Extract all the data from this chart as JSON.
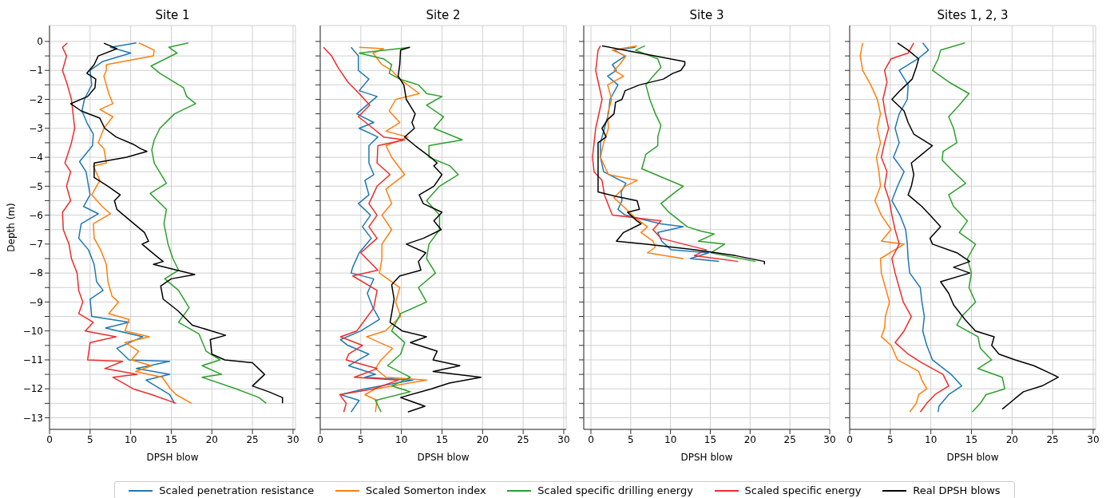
{
  "chart_data": [
    {
      "type": "line",
      "title": "Site 1",
      "xlabel": "DPSH blow",
      "ylabel": "Depth (m)",
      "xlim": [
        0,
        30.3
      ],
      "xticks": [
        0,
        5,
        10,
        15,
        20,
        25,
        30
      ],
      "ylim": [
        -13.4,
        0.55
      ],
      "yticks": [
        0,
        -1,
        -2,
        -3,
        -4,
        -5,
        -6,
        -7,
        -8,
        -9,
        -10,
        -11,
        -12,
        -13,
        {
          "value": -0.5,
          "label": null
        },
        {
          "value": -1.5,
          "label": null
        },
        {
          "value": -2.5,
          "label": null
        },
        {
          "value": -3.5,
          "label": null
        },
        {
          "value": -4.5,
          "label": null
        },
        {
          "value": -5.5,
          "label": null
        },
        {
          "value": -6.5,
          "label": null
        },
        {
          "value": -7.5,
          "label": null
        },
        {
          "value": -8.5,
          "label": null
        },
        {
          "value": -9.5,
          "label": null
        },
        {
          "value": -10.5,
          "label": null
        },
        {
          "value": -11.5,
          "label": null
        },
        {
          "value": -12.5,
          "label": null
        }
      ],
      "grid": true,
      "legend": "bottom",
      "marker": "none",
      "line_style": "solid",
      "series": [
        {
          "name": "Scaled penetration resistance",
          "color": "#1f77b4",
          "x": [
            10.7,
            7.5,
            10.0,
            6.5,
            5.0,
            5.2,
            4.3,
            4.0,
            4.6,
            5.4,
            5.3,
            3.7,
            4.5,
            5.0,
            4.2,
            6.0,
            3.9,
            3.6,
            4.8,
            5.5,
            5.8,
            6.6,
            5.0,
            5.2,
            9.8,
            6.9,
            11.5,
            8.3,
            9.8,
            14.8,
            10.7,
            14.8,
            11.9,
            14.8,
            15.4
          ],
          "values": [
            -0.05,
            -0.2,
            -0.4,
            -0.7,
            -1.0,
            -1.5,
            -2.0,
            -2.4,
            -2.8,
            -3.2,
            -3.6,
            -4.15,
            -4.5,
            -5.3,
            -5.7,
            -5.95,
            -6.3,
            -6.8,
            -7.2,
            -7.7,
            -8.3,
            -8.6,
            -8.9,
            -9.5,
            -9.7,
            -9.9,
            -10.2,
            -10.6,
            -11.0,
            -11.05,
            -11.3,
            -11.5,
            -11.7,
            -12.2,
            -12.5
          ]
        },
        {
          "name": "Scaled Somerton index",
          "color": "#ff7f0e",
          "x": [
            11.0,
            12.9,
            12.8,
            7.0,
            7.0,
            6.7,
            7.3,
            7.8,
            6.2,
            7.8,
            6.7,
            6.0,
            6.7,
            7.0,
            5.4,
            6.2,
            5.2,
            6.5,
            7.5,
            5.4,
            5.5,
            6.3,
            7.0,
            7.2,
            7.7,
            8.5,
            7.3,
            9.8,
            9.3,
            12.3,
            9.3,
            11.0,
            10.1,
            12.6,
            10.6,
            13.9,
            14.9,
            15.6,
            17.5
          ],
          "values": [
            -0.05,
            -0.3,
            -0.5,
            -0.8,
            -1.0,
            -1.2,
            -1.8,
            -2.15,
            -2.35,
            -2.6,
            -3.0,
            -3.5,
            -3.7,
            -4.2,
            -4.3,
            -4.8,
            -5.3,
            -5.7,
            -5.95,
            -6.3,
            -6.8,
            -7.2,
            -7.7,
            -8.3,
            -8.8,
            -9.0,
            -9.4,
            -9.6,
            -10.0,
            -10.2,
            -10.4,
            -10.7,
            -11.0,
            -11.2,
            -11.4,
            -11.6,
            -12.0,
            -12.2,
            -12.5
          ]
        },
        {
          "name": "Scaled specific drilling energy",
          "color": "#2ca02c",
          "x": [
            17.1,
            14.7,
            15.7,
            12.5,
            13.6,
            16.5,
            16.9,
            18.0,
            15.4,
            13.6,
            12.9,
            12.6,
            12.9,
            14.4,
            12.4,
            14.4,
            14.1,
            14.6,
            15.2,
            15.9,
            14.2,
            15.9,
            17.2,
            15.9,
            18.4,
            19.3,
            21.0,
            18.8,
            21.2,
            18.8,
            23.0,
            25.8,
            26.7
          ],
          "values": [
            -0.05,
            -0.2,
            -0.4,
            -0.85,
            -1.1,
            -1.6,
            -1.9,
            -2.15,
            -2.5,
            -3.0,
            -3.4,
            -3.75,
            -4.2,
            -4.9,
            -5.25,
            -5.8,
            -6.3,
            -7.0,
            -7.5,
            -7.9,
            -8.2,
            -8.6,
            -9.2,
            -9.7,
            -10.1,
            -10.7,
            -11.0,
            -11.2,
            -11.5,
            -11.6,
            -12.0,
            -12.3,
            -12.5
          ]
        },
        {
          "name": "Scaled specific energy",
          "color": "#ee2c2c",
          "x": [
            2.2,
            1.6,
            2.1,
            1.6,
            2.2,
            2.7,
            2.9,
            3.1,
            2.7,
            1.9,
            2.6,
            2.1,
            2.6,
            1.6,
            1.7,
            2.4,
            2.7,
            3.4,
            3.6,
            4.1,
            3.6,
            5.4,
            4.4,
            8.2,
            5.0,
            4.7,
            9.0,
            6.8,
            10.8,
            7.8,
            10.3,
            12.6,
            15.6
          ],
          "values": [
            -0.05,
            -0.2,
            -0.5,
            -1.0,
            -1.5,
            -2.0,
            -2.5,
            -3.0,
            -3.5,
            -4.2,
            -4.5,
            -5.0,
            -5.5,
            -5.9,
            -6.5,
            -7.0,
            -7.5,
            -8.0,
            -8.6,
            -9.0,
            -9.4,
            -9.7,
            -10.0,
            -10.2,
            -10.4,
            -11.0,
            -11.05,
            -11.3,
            -11.5,
            -11.6,
            -12.0,
            -12.2,
            -12.5
          ]
        },
        {
          "name": "Real DPSH blows",
          "color": "#000000",
          "x": [
            6.7,
            8.3,
            6.0,
            5.5,
            4.6,
            5.7,
            5.6,
            4.7,
            2.6,
            3.9,
            6.2,
            6.8,
            8.2,
            10.3,
            11.2,
            12.0,
            9.5,
            5.5,
            5.5,
            7.2,
            8.7,
            8.0,
            8.3,
            10.0,
            11.7,
            12.2,
            11.4,
            13.1,
            14.0,
            12.8,
            17.9,
            15.0,
            13.7,
            14.0,
            15.8,
            17.6,
            21.7,
            19.8,
            20.0,
            21.6,
            25.0,
            26.5,
            25.0,
            27.0,
            28.7,
            28.7
          ],
          "values": [
            -0.06,
            -0.25,
            -0.5,
            -0.8,
            -1.1,
            -1.3,
            -1.6,
            -1.9,
            -2.15,
            -2.4,
            -2.65,
            -3.0,
            -3.3,
            -3.55,
            -3.7,
            -3.8,
            -4.0,
            -4.2,
            -4.7,
            -5.0,
            -5.3,
            -5.5,
            -5.8,
            -6.2,
            -6.6,
            -6.9,
            -7.0,
            -7.4,
            -7.6,
            -7.7,
            -8.05,
            -8.2,
            -8.45,
            -8.9,
            -9.3,
            -9.8,
            -10.15,
            -10.3,
            -10.8,
            -11.0,
            -11.1,
            -11.5,
            -11.9,
            -12.1,
            -12.3,
            -12.5
          ]
        }
      ]
    },
    {
      "type": "line",
      "title": "Site 2",
      "xlabel": "DPSH blow",
      "xlim": [
        0,
        30.3
      ],
      "xticks": [
        0,
        5,
        10,
        15,
        20,
        25,
        30
      ],
      "ylim": [
        -13.4,
        0.55
      ],
      "yticks": [
        0,
        -1,
        -2,
        -3,
        -4,
        -5,
        -6,
        -7,
        -8,
        -9,
        -10,
        -11,
        -12,
        -13,
        {
          "value": -0.5,
          "label": null
        },
        {
          "value": -1.5,
          "label": null
        },
        {
          "value": -2.5,
          "label": null
        },
        {
          "value": -3.5,
          "label": null
        },
        {
          "value": -4.5,
          "label": null
        },
        {
          "value": -5.5,
          "label": null
        },
        {
          "value": -6.5,
          "label": null
        },
        {
          "value": -7.5,
          "label": null
        },
        {
          "value": -8.5,
          "label": null
        },
        {
          "value": -9.5,
          "label": null
        },
        {
          "value": -10.5,
          "label": null
        },
        {
          "value": -11.5,
          "label": null
        },
        {
          "value": -12.5,
          "label": null
        }
      ],
      "tick_labels": "x",
      "grid": true,
      "marker": "none",
      "line_style": "solid",
      "series": [
        {
          "name": "Scaled penetration resistance",
          "color": "#1f77b4",
          "x": [
            3.8,
            4.7,
            4.7,
            6.0,
            4.8,
            7.0,
            4.5,
            6.6,
            4.8,
            7.1,
            6.0,
            6.0,
            6.6,
            5.5,
            6.0,
            4.7,
            6.2,
            5.2,
            6.3,
            4.8,
            4.0,
            3.8,
            6.6,
            5.8,
            6.5,
            7.3,
            5.0,
            2.5,
            3.4,
            6.0,
            3.5,
            6.8,
            5.5,
            11.4,
            5.5,
            2.5,
            4.8,
            3.8
          ],
          "values": [
            -0.2,
            -0.5,
            -1.0,
            -1.3,
            -1.7,
            -1.9,
            -2.5,
            -2.8,
            -3.0,
            -3.3,
            -3.6,
            -4.2,
            -4.6,
            -4.8,
            -5.3,
            -5.6,
            -6.0,
            -6.4,
            -6.8,
            -7.3,
            -7.8,
            -8.0,
            -8.2,
            -8.7,
            -9.2,
            -9.6,
            -10.0,
            -10.3,
            -10.5,
            -10.8,
            -11.2,
            -11.5,
            -11.6,
            -11.7,
            -12.0,
            -12.2,
            -12.4,
            -12.8
          ]
        },
        {
          "name": "Scaled Somerton index",
          "color": "#ff7f0e",
          "x": [
            4.8,
            7.8,
            6.5,
            7.6,
            8.8,
            9.8,
            12.2,
            9.3,
            8.5,
            9.8,
            8.1,
            10.8,
            8.1,
            8.8,
            10.4,
            8.1,
            8.8,
            7.6,
            8.8,
            7.6,
            7.6,
            7.3,
            9.8,
            9.3,
            9.9,
            8.0,
            5.7,
            8.9,
            7.5,
            6.8,
            8.1,
            13.1,
            6.8,
            5.5,
            7.0,
            6.8
          ],
          "values": [
            -0.2,
            -0.25,
            -0.4,
            -0.8,
            -1.0,
            -1.3,
            -1.8,
            -2.0,
            -2.4,
            -2.8,
            -3.1,
            -3.3,
            -3.6,
            -4.0,
            -4.6,
            -5.1,
            -5.6,
            -6.0,
            -6.5,
            -7.0,
            -7.5,
            -8.0,
            -8.5,
            -9.0,
            -9.5,
            -10.0,
            -10.2,
            -10.6,
            -11.0,
            -11.3,
            -11.6,
            -11.7,
            -12.0,
            -12.2,
            -12.4,
            -12.8
          ]
        },
        {
          "name": "Scaled specific drilling energy",
          "color": "#2ca02c",
          "x": [
            11.1,
            9.6,
            4.8,
            7.8,
            8.8,
            8.5,
            9.8,
            12.1,
            13.1,
            15.0,
            13.1,
            15.2,
            14.0,
            17.5,
            13.4,
            13.4,
            16.0,
            17.0,
            14.7,
            13.1,
            14.7,
            14.7,
            13.4,
            13.1,
            14.2,
            12.1,
            13.1,
            9.9,
            8.8,
            10.4,
            9.9,
            8.3,
            11.1,
            8.8,
            11.1,
            6.8,
            7.5
          ],
          "values": [
            -0.2,
            -0.25,
            -0.4,
            -0.6,
            -0.8,
            -1.1,
            -1.3,
            -1.5,
            -1.8,
            -1.9,
            -2.2,
            -2.6,
            -3.0,
            -3.4,
            -3.6,
            -4.0,
            -4.3,
            -4.6,
            -5.0,
            -5.5,
            -6.0,
            -6.5,
            -7.0,
            -7.5,
            -8.0,
            -8.5,
            -9.0,
            -9.4,
            -10.0,
            -10.4,
            -10.8,
            -11.2,
            -11.6,
            -11.9,
            -12.1,
            -12.4,
            -12.8
          ]
        },
        {
          "name": "Scaled specific energy",
          "color": "#ee2c2c",
          "x": [
            0.4,
            1.4,
            2.2,
            3.4,
            4.8,
            6.1,
            4.7,
            6.5,
            7.8,
            10.4,
            7.1,
            7.0,
            8.6,
            7.0,
            6.0,
            7.0,
            6.0,
            7.0,
            5.0,
            7.1,
            4.0,
            7.0,
            6.6,
            5.3,
            4.5,
            2.5,
            5.2,
            3.5,
            3.2,
            7.0,
            4.2,
            9.6,
            6.6,
            2.4,
            3.2,
            2.9
          ],
          "values": [
            -0.2,
            -0.5,
            -0.9,
            -1.4,
            -1.8,
            -2.2,
            -2.6,
            -3.0,
            -3.3,
            -3.4,
            -3.6,
            -4.2,
            -4.6,
            -5.0,
            -5.6,
            -6.0,
            -6.4,
            -6.8,
            -7.3,
            -7.9,
            -8.1,
            -8.6,
            -9.2,
            -9.7,
            -10.0,
            -10.2,
            -10.5,
            -10.8,
            -11.0,
            -11.3,
            -11.6,
            -11.7,
            -12.0,
            -12.2,
            -12.5,
            -12.8
          ]
        },
        {
          "name": "Real DPSH blows",
          "color": "#000000",
          "x": [
            11.0,
            9.9,
            9.8,
            9.6,
            10.3,
            10.6,
            11.7,
            11.3,
            11.6,
            10.4,
            11.7,
            13.6,
            14.4,
            14.0,
            15.0,
            14.0,
            12.2,
            12.7,
            15.0,
            14.0,
            14.9,
            12.7,
            10.6,
            13.0,
            12.1,
            12.4,
            9.8,
            8.8,
            9.1,
            8.8,
            8.6,
            10.1,
            13.1,
            11.1,
            14.4,
            13.9,
            17.2,
            13.9,
            19.8,
            15.9,
            13.7,
            9.9,
            12.9,
            10.8
          ],
          "values": [
            -0.2,
            -0.3,
            -0.8,
            -1.2,
            -1.5,
            -2.0,
            -2.5,
            -2.8,
            -3.0,
            -3.3,
            -3.6,
            -4.0,
            -4.2,
            -4.3,
            -4.6,
            -5.0,
            -5.3,
            -5.6,
            -5.9,
            -6.2,
            -6.5,
            -6.8,
            -7.0,
            -7.3,
            -7.6,
            -7.9,
            -8.1,
            -8.4,
            -8.9,
            -9.4,
            -9.7,
            -10.0,
            -10.2,
            -10.4,
            -10.7,
            -11.0,
            -11.2,
            -11.4,
            -11.6,
            -11.8,
            -12.0,
            -12.3,
            -12.6,
            -12.8
          ]
        }
      ]
    },
    {
      "type": "line",
      "title": "Site 3",
      "xlabel": "DPSH blow",
      "xlim": [
        -0.9,
        30.0
      ],
      "xticks": [
        0,
        5,
        10,
        15,
        20,
        25,
        30
      ],
      "ylim": [
        -13.4,
        0.55
      ],
      "yticks": [
        0,
        -1,
        -2,
        -3,
        -4,
        -5,
        -6,
        -7,
        -8,
        -9,
        -10,
        -11,
        -12,
        -13,
        {
          "value": -0.5,
          "label": null
        },
        {
          "value": -1.5,
          "label": null
        },
        {
          "value": -2.5,
          "label": null
        },
        {
          "value": -3.5,
          "label": null
        },
        {
          "value": -4.5,
          "label": null
        },
        {
          "value": -5.5,
          "label": null
        },
        {
          "value": -6.5,
          "label": null
        },
        {
          "value": -7.5,
          "label": null
        },
        {
          "value": -8.5,
          "label": null
        },
        {
          "value": -9.5,
          "label": null
        },
        {
          "value": -10.5,
          "label": null
        },
        {
          "value": -11.5,
          "label": null
        },
        {
          "value": -12.5,
          "label": null
        }
      ],
      "tick_labels": "x",
      "grid": true,
      "marker": "none",
      "line_style": "solid",
      "series": [
        {
          "name": "Scaled penetration resistance",
          "color": "#1f77b4",
          "x": [
            5.6,
            2.9,
            4.3,
            2.7,
            3.2,
            2.1,
            3.4,
            2.4,
            2.2,
            1.7,
            1.2,
            1.2,
            1.6,
            4.4,
            3.8,
            3.9,
            3.4,
            4.3,
            8.8,
            11.6,
            8.4,
            8.9,
            10.1,
            14.8,
            12.5,
            16.1
          ],
          "values": [
            -0.2,
            -0.3,
            -0.5,
            -0.8,
            -1.0,
            -1.2,
            -1.5,
            -2.0,
            -2.5,
            -3.0,
            -3.5,
            -4.0,
            -4.5,
            -4.9,
            -5.2,
            -5.5,
            -5.8,
            -6.0,
            -6.3,
            -6.4,
            -6.6,
            -6.9,
            -7.2,
            -7.3,
            -7.5,
            -7.6
          ]
        },
        {
          "name": "Scaled Somerton index",
          "color": "#ff7f0e",
          "x": [
            5.8,
            2.7,
            4.4,
            3.6,
            2.9,
            4.1,
            2.1,
            2.6,
            2.1,
            2.2,
            1.6,
            1.2,
            2.2,
            5.8,
            4.3,
            2.9,
            4.1,
            5.6,
            7.1,
            6.3,
            7.8,
            8.1,
            7.1,
            11.6
          ],
          "values": [
            -0.15,
            -0.3,
            -0.5,
            -0.8,
            -1.0,
            -1.2,
            -1.5,
            -2.0,
            -2.5,
            -3.0,
            -3.5,
            -4.0,
            -4.6,
            -4.8,
            -5.0,
            -5.4,
            -5.7,
            -6.1,
            -6.4,
            -6.6,
            -6.9,
            -7.1,
            -7.3,
            -7.5
          ]
        },
        {
          "name": "Scaled specific drilling energy",
          "color": "#2ca02c",
          "x": [
            6.8,
            5.6,
            8.4,
            8.8,
            7.8,
            6.9,
            7.4,
            8.1,
            8.8,
            8.4,
            8.4,
            6.9,
            6.4,
            11.6,
            10.6,
            8.8,
            9.8,
            12.1,
            13.8,
            15.5,
            13.5,
            16.8,
            15.1,
            20.7
          ],
          "values": [
            -0.15,
            -0.3,
            -0.6,
            -0.9,
            -1.2,
            -1.5,
            -2.0,
            -2.5,
            -2.9,
            -3.3,
            -3.6,
            -3.9,
            -4.4,
            -5.0,
            -5.2,
            -5.6,
            -5.9,
            -6.4,
            -6.55,
            -6.65,
            -6.9,
            -7.0,
            -7.3,
            -7.6
          ]
        },
        {
          "name": "Scaled specific energy",
          "color": "#ee2c2c",
          "x": [
            1.2,
            0.9,
            0.6,
            1.4,
            0.6,
            0.2,
            0.4,
            1.4,
            1.7,
            2.4,
            2.7,
            8.8,
            7.8,
            8.8,
            14.5,
            13.0,
            18.5
          ],
          "values": [
            -0.15,
            -0.3,
            -1.0,
            -2.0,
            -3.0,
            -4.0,
            -4.5,
            -4.8,
            -5.3,
            -5.8,
            -6.0,
            -6.2,
            -6.5,
            -6.8,
            -7.2,
            -7.4,
            -7.6
          ]
        },
        {
          "name": "Real DPSH blows",
          "color": "#000000",
          "x": [
            1.4,
            11.8,
            11.8,
            11.3,
            10.3,
            9.1,
            6.1,
            4.3,
            3.9,
            3.1,
            2.9,
            2.1,
            1.4,
            1.9,
            0.9,
            0.9,
            0.9,
            3.1,
            5.8,
            6.1,
            4.6,
            5.8,
            6.3,
            4.1,
            3.2,
            6.8,
            13.1,
            18.2,
            21.8,
            21.8
          ],
          "values": [
            -0.15,
            -0.7,
            -0.8,
            -1.0,
            -1.1,
            -1.3,
            -1.5,
            -1.7,
            -2.0,
            -2.1,
            -2.5,
            -2.7,
            -3.0,
            -3.3,
            -3.5,
            -4.5,
            -5.2,
            -5.35,
            -5.5,
            -5.8,
            -5.9,
            -6.2,
            -6.3,
            -6.6,
            -6.9,
            -7.0,
            -7.2,
            -7.4,
            -7.6,
            -7.7
          ]
        }
      ]
    },
    {
      "type": "line",
      "title": "Sites 1, 2, 3",
      "xlabel": "DPSH blow",
      "xlim": [
        0,
        30.3
      ],
      "xticks": [
        0,
        5,
        10,
        15,
        20,
        25,
        30
      ],
      "ylim": [
        -13.4,
        0.55
      ],
      "yticks": [
        0,
        -1,
        -2,
        -3,
        -4,
        -5,
        -6,
        -7,
        -8,
        -9,
        -10,
        -11,
        -12,
        -13,
        {
          "value": -0.5,
          "label": null
        },
        {
          "value": -1.5,
          "label": null
        },
        {
          "value": -2.5,
          "label": null
        },
        {
          "value": -3.5,
          "label": null
        },
        {
          "value": -4.5,
          "label": null
        },
        {
          "value": -5.5,
          "label": null
        },
        {
          "value": -6.5,
          "label": null
        },
        {
          "value": -7.5,
          "label": null
        },
        {
          "value": -8.5,
          "label": null
        },
        {
          "value": -9.5,
          "label": null
        },
        {
          "value": -10.5,
          "label": null
        },
        {
          "value": -11.5,
          "label": null
        },
        {
          "value": -12.5,
          "label": null
        }
      ],
      "tick_labels": "x",
      "grid": true,
      "marker": "none",
      "line_style": "solid",
      "series": [
        {
          "name": "Scaled penetration resistance",
          "color": "#1f77b4",
          "x": [
            9.0,
            9.7,
            8.4,
            6.1,
            7.2,
            7.1,
            6.1,
            5.6,
            6.1,
            5.4,
            6.7,
            5.9,
            5.2,
            6.2,
            6.9,
            7.1,
            7.2,
            7.4,
            8.7,
            8.9,
            9.2,
            9.0,
            9.5,
            10.2,
            12.5,
            13.8,
            12.2,
            11.0,
            10.9
          ],
          "values": [
            -0.05,
            -0.3,
            -0.6,
            -1.0,
            -1.5,
            -2.0,
            -2.5,
            -3.0,
            -3.5,
            -4.0,
            -4.5,
            -5.0,
            -5.5,
            -6.0,
            -6.5,
            -7.0,
            -7.5,
            -8.0,
            -8.5,
            -9.0,
            -9.5,
            -10.0,
            -10.5,
            -11.0,
            -11.5,
            -11.9,
            -12.2,
            -12.6,
            -12.8
          ]
        },
        {
          "name": "Scaled Somerton index",
          "color": "#ff7f0e",
          "x": [
            1.6,
            1.3,
            1.6,
            2.6,
            3.4,
            3.8,
            3.4,
            3.8,
            3.3,
            3.6,
            3.8,
            3.1,
            3.9,
            5.1,
            3.9,
            6.7,
            3.8,
            3.9,
            4.4,
            4.9,
            4.4,
            4.3,
            3.9,
            5.1,
            5.9,
            8.5,
            8.9,
            9.5,
            8.5,
            8.2,
            7.4
          ],
          "values": [
            -0.05,
            -0.5,
            -1.0,
            -1.5,
            -2.0,
            -2.5,
            -3.0,
            -3.5,
            -4.0,
            -4.5,
            -5.0,
            -5.5,
            -6.0,
            -6.5,
            -6.9,
            -7.0,
            -7.5,
            -8.0,
            -8.5,
            -9.0,
            -9.5,
            -9.9,
            -10.2,
            -10.5,
            -11.0,
            -11.4,
            -11.7,
            -12.0,
            -12.2,
            -12.5,
            -12.8
          ]
        },
        {
          "name": "Scaled specific drilling energy",
          "color": "#2ca02c",
          "x": [
            14.2,
            11.2,
            10.9,
            10.2,
            12.2,
            14.7,
            13.5,
            12.2,
            12.8,
            13.2,
            11.5,
            11.4,
            12.8,
            14.3,
            12.2,
            12.8,
            14.5,
            13.5,
            15.5,
            14.5,
            15.0,
            14.7,
            15.5,
            13.8,
            13.2,
            15.8,
            16.1,
            17.5,
            15.8,
            18.8,
            19.1,
            16.8,
            16.1,
            15.1
          ],
          "values": [
            -0.05,
            -0.3,
            -0.6,
            -1.0,
            -1.4,
            -1.8,
            -2.2,
            -2.6,
            -3.0,
            -3.5,
            -3.8,
            -4.1,
            -4.5,
            -4.9,
            -5.3,
            -5.7,
            -6.2,
            -6.6,
            -7.0,
            -7.5,
            -8.0,
            -8.5,
            -9.0,
            -9.5,
            -9.8,
            -10.2,
            -10.6,
            -11.0,
            -11.3,
            -11.6,
            -12.0,
            -12.2,
            -12.5,
            -12.8
          ]
        },
        {
          "name": "Scaled specific energy",
          "color": "#ee2c2c",
          "x": [
            7.9,
            7.2,
            5.1,
            4.3,
            4.6,
            4.1,
            4.4,
            4.8,
            4.3,
            3.9,
            4.6,
            4.3,
            4.9,
            5.2,
            5.6,
            6.1,
            5.2,
            5.6,
            6.1,
            6.6,
            7.6,
            6.7,
            5.6,
            7.2,
            8.9,
            11.5,
            12.2,
            10.5,
            9.5,
            8.7
          ],
          "values": [
            -0.05,
            -0.4,
            -0.6,
            -1.0,
            -1.4,
            -2.0,
            -2.5,
            -3.0,
            -3.5,
            -4.0,
            -4.5,
            -5.0,
            -5.5,
            -6.0,
            -6.5,
            -7.0,
            -7.5,
            -8.0,
            -8.5,
            -9.0,
            -9.5,
            -10.0,
            -10.4,
            -10.8,
            -11.1,
            -11.5,
            -11.9,
            -12.2,
            -12.5,
            -12.8
          ]
        },
        {
          "name": "Real DPSH blows",
          "color": "#000000",
          "x": [
            5.9,
            7.2,
            8.5,
            8.2,
            7.7,
            6.2,
            5.2,
            6.7,
            7.2,
            7.9,
            10.2,
            8.9,
            7.6,
            7.9,
            7.6,
            7.2,
            8.9,
            9.9,
            11.2,
            9.9,
            10.2,
            13.2,
            14.8,
            12.8,
            14.8,
            11.2,
            12.2,
            12.8,
            14.2,
            15.5,
            17.8,
            17.5,
            18.4,
            20.4,
            22.7,
            25.0,
            25.7,
            23.7,
            21.4,
            20.1,
            18.8
          ],
          "values": [
            -0.05,
            -0.3,
            -0.6,
            -0.9,
            -1.3,
            -1.7,
            -2.0,
            -2.4,
            -2.8,
            -3.2,
            -3.6,
            -3.9,
            -4.2,
            -4.6,
            -5.0,
            -5.3,
            -5.7,
            -6.0,
            -6.4,
            -6.8,
            -7.0,
            -7.3,
            -7.6,
            -7.8,
            -8.0,
            -8.3,
            -8.7,
            -9.1,
            -9.6,
            -10.0,
            -10.2,
            -10.5,
            -10.8,
            -11.0,
            -11.2,
            -11.5,
            -11.6,
            -11.9,
            -12.1,
            -12.4,
            -12.7
          ]
        }
      ]
    }
  ]
}
